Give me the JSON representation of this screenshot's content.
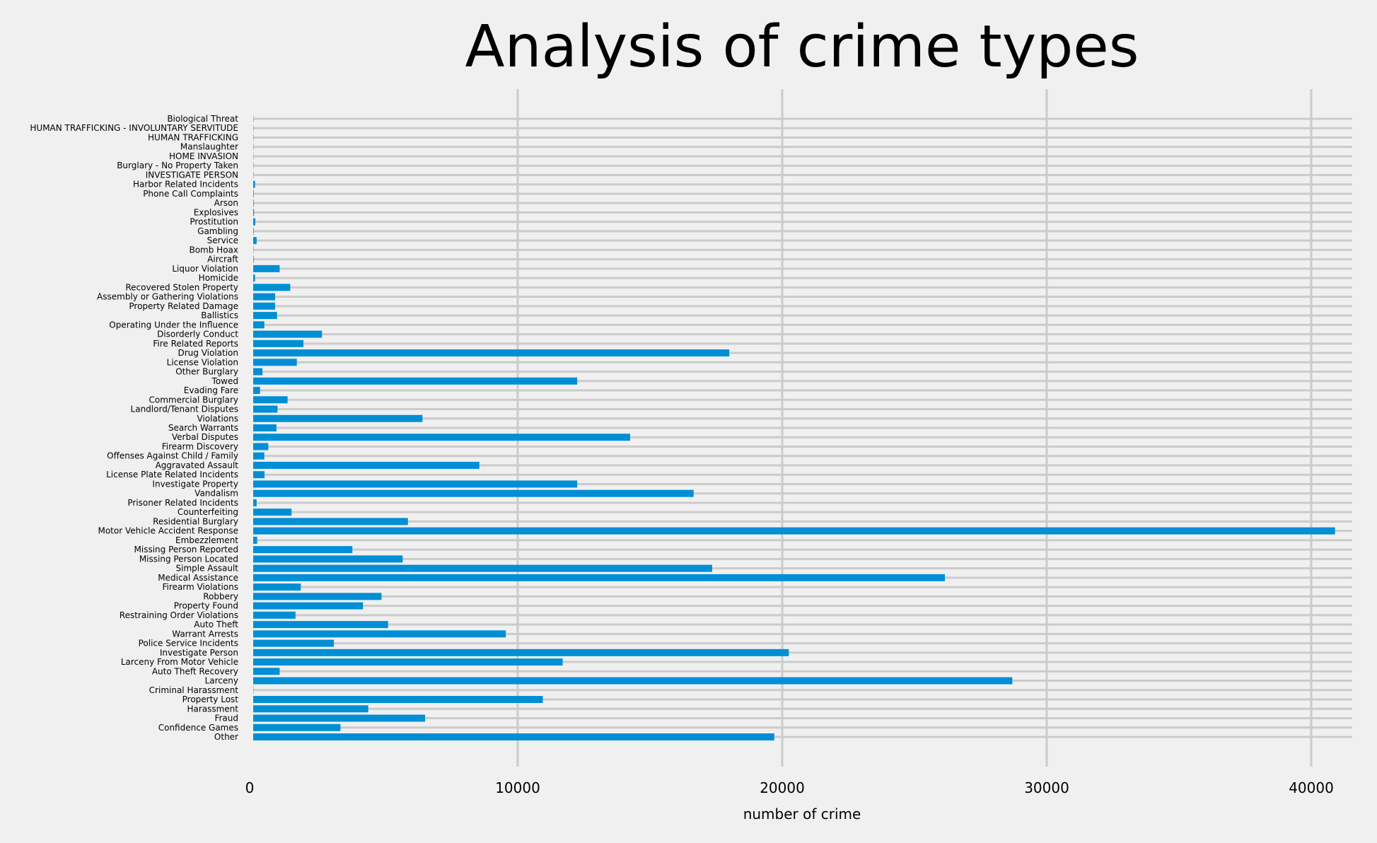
{
  "chart_data": {
    "type": "bar",
    "orientation": "horizontal",
    "title": "Analysis of crime types",
    "xlabel": "number of crime",
    "ylabel": "",
    "xlim": [
      0,
      43000
    ],
    "xticks": [
      0,
      10000,
      20000,
      30000,
      40000
    ],
    "grid": true,
    "bar_color": "#008fd5",
    "grid_color": "#cbcbcb",
    "background_color": "#f0f0f0",
    "categories": [
      "Other",
      "Confidence Games",
      "Fraud",
      "Harassment",
      "Property Lost",
      "Criminal Harassment",
      "Larceny",
      "Auto Theft Recovery",
      "Larceny From Motor Vehicle",
      "Investigate Person",
      "Police Service Incidents",
      "Warrant Arrests",
      "Auto Theft",
      "Restraining Order Violations",
      "Property Found",
      "Robbery",
      "Firearm Violations",
      "Medical Assistance",
      "Simple Assault",
      "Missing Person Located",
      "Missing Person Reported",
      "Embezzlement",
      "Motor Vehicle Accident Response",
      "Residential Burglary",
      "Counterfeiting",
      "Prisoner Related Incidents",
      "Vandalism",
      "Investigate Property",
      "License Plate Related Incidents",
      "Aggravated Assault",
      "Offenses Against Child / Family",
      "Firearm Discovery",
      "Verbal Disputes",
      "Search Warrants",
      "Violations",
      "Landlord/Tenant Disputes",
      "Commercial Burglary",
      "Evading Fare",
      "Towed",
      "Other Burglary",
      "License Violation",
      "Drug Violation",
      "Fire Related Reports",
      "Disorderly Conduct",
      "Operating Under the Influence",
      "Ballistics",
      "Property Related Damage",
      "Assembly or Gathering Violations",
      "Recovered Stolen Property",
      "Homicide",
      "Liquor Violation",
      "Aircraft",
      "Bomb Hoax",
      "Service",
      "Gambling",
      "Prostitution",
      "Explosives",
      "Arson",
      "Phone Call Complaints",
      "Harbor Related Incidents",
      "INVESTIGATE PERSON",
      "Burglary - No Property Taken",
      "HOME INVASION",
      "Manslaughter",
      "HUMAN TRAFFICKING",
      "HUMAN TRAFFICKING - INVOLUNTARY SERVITUDE",
      "Biological Threat"
    ],
    "values": [
      19700,
      3300,
      6500,
      4350,
      10950,
      10,
      28700,
      1000,
      11700,
      20250,
      3050,
      9550,
      5100,
      1600,
      4150,
      4850,
      1800,
      26150,
      17350,
      5650,
      3750,
      150,
      40900,
      5850,
      1450,
      130,
      16650,
      12250,
      430,
      8550,
      420,
      570,
      14250,
      880,
      6400,
      920,
      1300,
      260,
      12250,
      350,
      1650,
      18000,
      1900,
      2600,
      420,
      900,
      830,
      830,
      1400,
      70,
      1000,
      20,
      10,
      130,
      20,
      80,
      30,
      20,
      20,
      70,
      10,
      10,
      10,
      10,
      10,
      10,
      10
    ]
  }
}
